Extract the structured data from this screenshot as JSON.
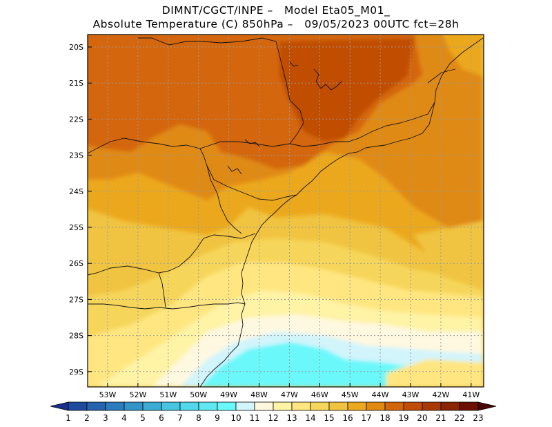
{
  "header": {
    "line1": "DIMNT/CGCT/INPE –   Model Eta05_M01_",
    "line2": "Absolute Temperature (C) 850hPa –   09/05/2023 00UTC fct=28h"
  },
  "map": {
    "lat_labels": [
      "20S",
      "21S",
      "22S",
      "23S",
      "24S",
      "25S",
      "26S",
      "27S",
      "28S",
      "29S"
    ],
    "lon_labels": [
      "53W",
      "52W",
      "51W",
      "50W",
      "49W",
      "48W",
      "47W",
      "46W",
      "45W",
      "44W",
      "43W",
      "42W",
      "41W"
    ]
  },
  "colorbar": {
    "labels": [
      "1",
      "2",
      "3",
      "4",
      "5",
      "6",
      "7",
      "8",
      "9",
      "10",
      "11",
      "12",
      "13",
      "14",
      "15",
      "16",
      "17",
      "18",
      "19",
      "20",
      "21",
      "22",
      "23"
    ],
    "colors": [
      "#1a2f8c",
      "#1e4a9e",
      "#2563ae",
      "#2b7cbc",
      "#3394c8",
      "#3cacd4",
      "#46c4e0",
      "#52d8ea",
      "#5fe8f2",
      "#6af8fa",
      "#d2f4fb",
      "#fff8e0",
      "#fff3a6",
      "#ffe680",
      "#f6d65a",
      "#f0c440",
      "#eca81e",
      "#e08a12",
      "#d4660a",
      "#c04e06",
      "#a83a04",
      "#8a2404",
      "#6c1004",
      "#4a0404"
    ]
  }
}
